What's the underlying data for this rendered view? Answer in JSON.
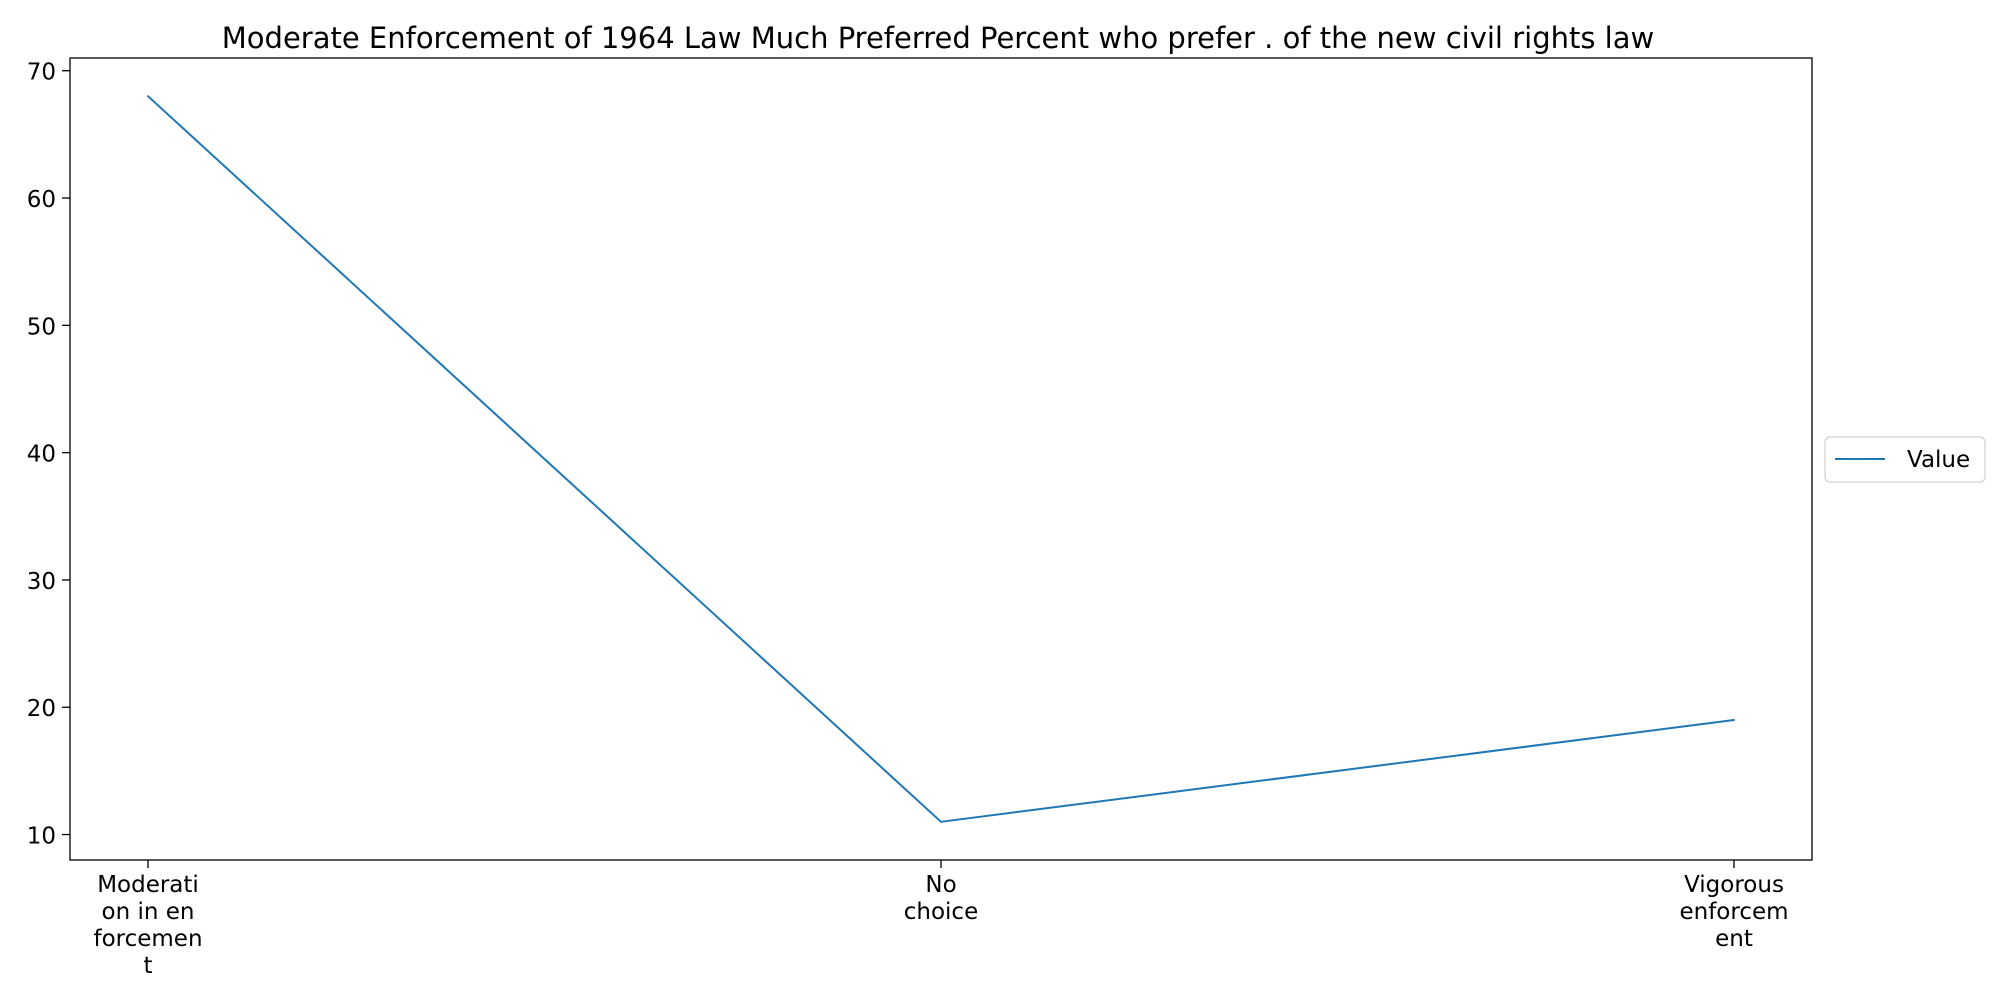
{
  "chart_data": {
    "type": "line",
    "title": "Moderate Enforcement of 1964 Law Much Preferred Percent who prefer . of the new civil rights law",
    "xlabel": "",
    "ylabel": "",
    "categories": [
      "Moderati\non in en\nforcemen\nt",
      "No\nchoice",
      "Vigorous\nenforcem\nent"
    ],
    "series": [
      {
        "name": "Value",
        "values": [
          68,
          11,
          19
        ],
        "color": "#1f77b4"
      }
    ],
    "ylim": [
      8,
      71
    ],
    "yticks": [
      10,
      20,
      30,
      40,
      50,
      60,
      70
    ],
    "grid": false,
    "legend": {
      "position": "right"
    }
  }
}
